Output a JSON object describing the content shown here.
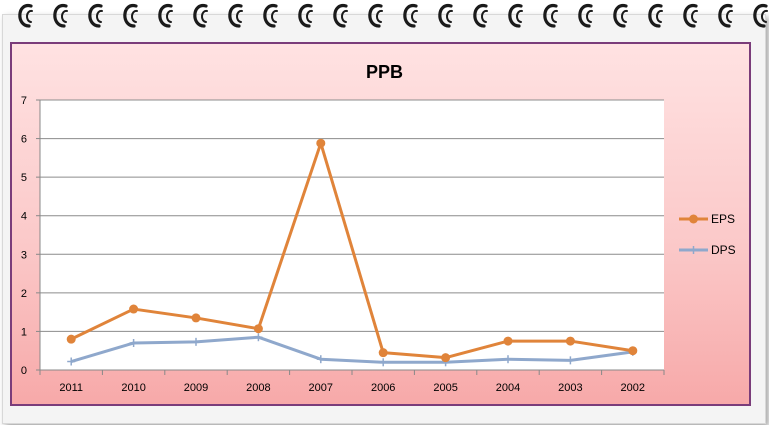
{
  "chart_data": {
    "type": "line",
    "title": "PPB",
    "xlabel": "",
    "ylabel": "",
    "categories": [
      "2011",
      "2010",
      "2009",
      "2008",
      "2007",
      "2006",
      "2005",
      "2004",
      "2003",
      "2002"
    ],
    "ylim": [
      0,
      7
    ],
    "yticks": [
      "0",
      "1",
      "2",
      "3",
      "4",
      "5",
      "6",
      "7"
    ],
    "grid": true,
    "legend_position": "right",
    "series": [
      {
        "name": "EPS",
        "color": "#e0843a",
        "marker": "circle",
        "values": [
          0.8,
          1.58,
          1.35,
          1.07,
          5.88,
          0.45,
          0.32,
          0.75,
          0.75,
          0.5
        ]
      },
      {
        "name": "DPS",
        "color": "#8fa8cc",
        "marker": "plus",
        "values": [
          0.22,
          0.7,
          0.73,
          0.85,
          0.28,
          0.2,
          0.2,
          0.28,
          0.25,
          0.47
        ]
      }
    ]
  },
  "decor": {
    "ring_icon": "notebook-ring-icon",
    "frame_color": "#7a3c7a",
    "background_top": "#ffe2e2",
    "background_bottom": "#f7a9a9"
  }
}
